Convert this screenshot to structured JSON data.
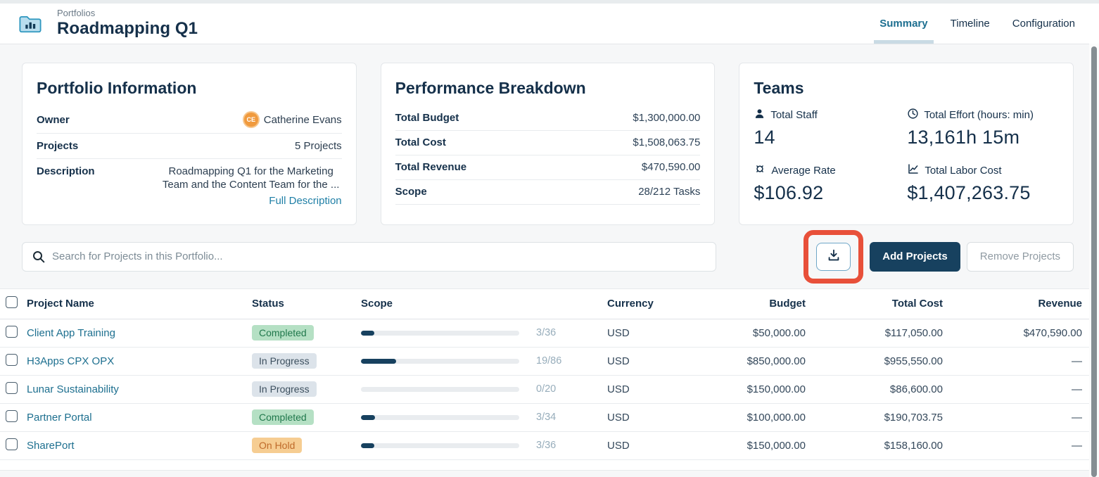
{
  "header": {
    "breadcrumb": "Portfolios",
    "title": "Roadmapping Q1",
    "tabs": [
      {
        "label": "Summary",
        "active": true
      },
      {
        "label": "Timeline",
        "active": false
      },
      {
        "label": "Configuration",
        "active": false
      }
    ]
  },
  "portfolio_info": {
    "title": "Portfolio Information",
    "owner_label": "Owner",
    "owner_initials": "CE",
    "owner_name": "Catherine Evans",
    "projects_label": "Projects",
    "projects_value": "5 Projects",
    "description_label": "Description",
    "description_value": "Roadmapping Q1 for the Marketing Team and the Content Team for the ...",
    "full_description_link": "Full Description"
  },
  "performance": {
    "title": "Performance Breakdown",
    "rows": [
      {
        "label": "Total Budget",
        "value": "$1,300,000.00"
      },
      {
        "label": "Total Cost",
        "value": "$1,508,063.75"
      },
      {
        "label": "Total Revenue",
        "value": "$470,590.00"
      },
      {
        "label": "Scope",
        "value": "28/212 Tasks"
      }
    ]
  },
  "teams": {
    "title": "Teams",
    "metrics": [
      {
        "icon": "person-icon",
        "label": "Total Staff",
        "value": "14"
      },
      {
        "icon": "clock-icon",
        "label": "Total Effort (hours: min)",
        "value": "13,161h 15m"
      },
      {
        "icon": "currency-icon",
        "label": "Average Rate",
        "value": "$106.92"
      },
      {
        "icon": "chart-icon",
        "label": "Total Labor Cost",
        "value": "$1,407,263.75"
      }
    ]
  },
  "toolbar": {
    "search_placeholder": "Search for Projects in this Portfolio...",
    "add_button": "Add Projects",
    "remove_button": "Remove Projects"
  },
  "table": {
    "columns": [
      "Project Name",
      "Status",
      "Scope",
      "Currency",
      "Budget",
      "Total Cost",
      "Revenue"
    ],
    "rows": [
      {
        "name": "Client App Training",
        "status": "Completed",
        "status_type": "completed",
        "scope_done": 3,
        "scope_total": 36,
        "scope": "3/36",
        "currency": "USD",
        "budget": "$50,000.00",
        "total_cost": "$117,050.00",
        "revenue": "$470,590.00"
      },
      {
        "name": "H3Apps CPX OPX",
        "status": "In Progress",
        "status_type": "in-progress",
        "scope_done": 19,
        "scope_total": 86,
        "scope": "19/86",
        "currency": "USD",
        "budget": "$850,000.00",
        "total_cost": "$955,550.00",
        "revenue": "—"
      },
      {
        "name": "Lunar Sustainability",
        "status": "In Progress",
        "status_type": "in-progress",
        "scope_done": 0,
        "scope_total": 20,
        "scope": "0/20",
        "currency": "USD",
        "budget": "$150,000.00",
        "total_cost": "$86,600.00",
        "revenue": "—"
      },
      {
        "name": "Partner Portal",
        "status": "Completed",
        "status_type": "completed",
        "scope_done": 3,
        "scope_total": 34,
        "scope": "3/34",
        "currency": "USD",
        "budget": "$100,000.00",
        "total_cost": "$190,703.75",
        "revenue": "—"
      },
      {
        "name": "SharePort",
        "status": "On Hold",
        "status_type": "on-hold",
        "scope_done": 3,
        "scope_total": 36,
        "scope": "3/36",
        "currency": "USD",
        "budget": "$150,000.00",
        "total_cost": "$158,160.00",
        "revenue": "—"
      }
    ]
  },
  "colors": {
    "accent_teal": "#1d6f90",
    "navy_text": "#15304a",
    "primary_button": "#17415f",
    "annotation_red": "#e8503a",
    "completed_badge_bg": "#b5e0c4",
    "completed_badge_text": "#20784c",
    "in_progress_badge_bg": "#dce3ea",
    "in_progress_badge_text": "#3c4f5e",
    "on_hold_badge_bg": "#f6cd92",
    "on_hold_badge_text": "#bf6a2a",
    "project_link": "#1d6f8f",
    "avatar_orange": "#f09a3e",
    "tab_underline": "#c9dbe4"
  }
}
